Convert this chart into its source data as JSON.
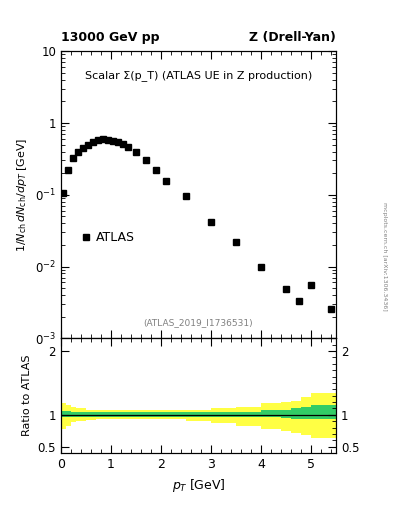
{
  "title_left": "13000 GeV pp",
  "title_right": "Z (Drell-Yan)",
  "main_label": "Scalar Σ(p_T) (ATLAS UE in Z production)",
  "ref_label": "(ATLAS_2019_I1736531)",
  "atlas_label": "ATLAS",
  "watermark": "mcplots.cern.ch [arXiv:1306.3436]",
  "xlabel": "p_T [GeV]",
  "ylabel_main": "1/N_{ch} dN_{ch}/dp_T [GeV]",
  "ylabel_ratio": "Ratio to ATLAS",
  "data_x": [
    0.05,
    0.15,
    0.25,
    0.35,
    0.45,
    0.55,
    0.65,
    0.75,
    0.85,
    0.95,
    1.05,
    1.15,
    1.25,
    1.35,
    1.5,
    1.7,
    1.9,
    2.1,
    2.5,
    3.0,
    3.5,
    4.0,
    4.5,
    4.75,
    5.0,
    5.4
  ],
  "data_y": [
    0.105,
    0.22,
    0.33,
    0.4,
    0.45,
    0.5,
    0.55,
    0.58,
    0.6,
    0.58,
    0.56,
    0.54,
    0.51,
    0.47,
    0.4,
    0.3,
    0.22,
    0.155,
    0.095,
    0.042,
    0.022,
    0.01,
    0.0048,
    0.0033,
    0.0056,
    0.0026
  ],
  "data_color": "#000000",
  "data_marker": "s",
  "data_markersize": 4.0,
  "ylim_main": [
    0.001,
    10
  ],
  "xlim": [
    0,
    5.5
  ],
  "ratio_band_x_edges": [
    0.0,
    0.1,
    0.2,
    0.3,
    0.5,
    0.7,
    1.0,
    1.4,
    2.0,
    2.5,
    3.0,
    3.5,
    4.0,
    4.4,
    4.6,
    4.8,
    5.0,
    5.5
  ],
  "ratio_green_lo": [
    0.96,
    0.96,
    0.97,
    0.97,
    0.97,
    0.97,
    0.97,
    0.97,
    0.97,
    0.97,
    0.97,
    0.97,
    0.96,
    0.95,
    0.93,
    0.93,
    0.93
  ],
  "ratio_green_hi": [
    1.06,
    1.06,
    1.05,
    1.05,
    1.05,
    1.05,
    1.05,
    1.05,
    1.05,
    1.05,
    1.05,
    1.05,
    1.07,
    1.08,
    1.1,
    1.12,
    1.15
  ],
  "ratio_yellow_lo": [
    0.78,
    0.82,
    0.88,
    0.9,
    0.92,
    0.93,
    0.93,
    0.93,
    0.93,
    0.9,
    0.87,
    0.82,
    0.78,
    0.75,
    0.72,
    0.68,
    0.63
  ],
  "ratio_yellow_hi": [
    1.18,
    1.15,
    1.12,
    1.1,
    1.08,
    1.07,
    1.07,
    1.07,
    1.07,
    1.08,
    1.1,
    1.12,
    1.18,
    1.2,
    1.22,
    1.28,
    1.35
  ],
  "ratio_ylim": [
    0.4,
    2.2
  ],
  "ratio_yticks": [
    0.5,
    1.0,
    2.0
  ],
  "green_color": "#33cc66",
  "yellow_color": "#ffff44",
  "background_color": "#ffffff"
}
